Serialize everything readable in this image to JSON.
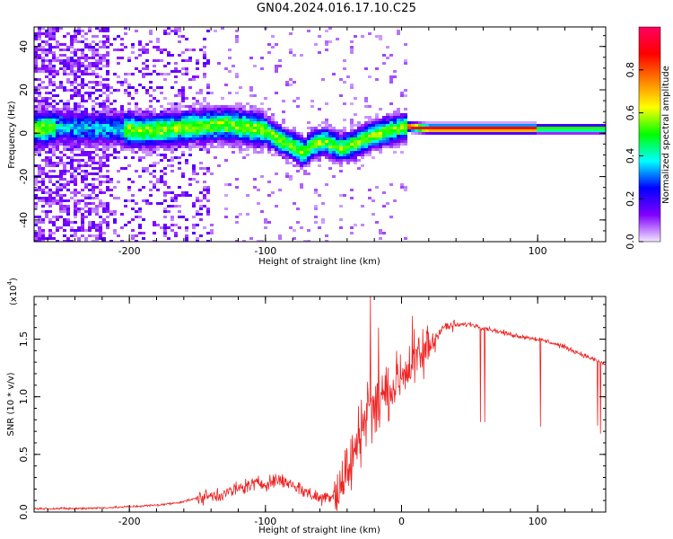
{
  "title": "GN04.2024.016.17.10.C25",
  "colors": {
    "snr_line": "#ee2222",
    "axes": "#000000"
  },
  "chart_data": [
    {
      "type": "heatmap",
      "xlabel": "Height of straight line (km)",
      "ylabel": "Frequency (Hz)",
      "xlim": [
        -270,
        150
      ],
      "ylim": [
        -50,
        49
      ],
      "xticks": [
        -200,
        -100,
        100
      ],
      "yticks": [
        -40,
        -20,
        0,
        20,
        40
      ],
      "colorbar": {
        "label": "Normalized spectral amplitude",
        "range": [
          0,
          1
        ],
        "ticks": [
          "0.0",
          "0.2",
          "0.4",
          "0.6",
          "0.8"
        ],
        "colormap": [
          "#f2e6ff",
          "#8000ff",
          "#0000ff",
          "#00ffff",
          "#00ff00",
          "#ffff00",
          "#ff8000",
          "#ff0000",
          "#ff0060"
        ]
      },
      "ridge_frequency": {
        "x": [
          -265,
          -250,
          -230,
          -210,
          -190,
          -170,
          -150,
          -130,
          -115,
          -100,
          -90,
          -80,
          -72,
          -65,
          -55,
          -45,
          -35,
          -25,
          -15,
          -5,
          5,
          20,
          50,
          100,
          150
        ],
        "y": [
          2,
          3,
          2,
          2,
          1,
          2,
          3,
          4,
          3,
          1,
          -3,
          -6,
          -9,
          -5,
          -4,
          -7,
          -5,
          -2,
          0,
          2,
          3,
          2,
          2,
          2,
          2
        ]
      }
    },
    {
      "type": "line",
      "xlabel": "Height of straight line (km)",
      "ylabel": "SNR (10 * v/v)",
      "y_multiplier_label": "(x10",
      "y_multiplier_exp": "4",
      "xlim": [
        -270,
        150
      ],
      "ylim": [
        0,
        1.87
      ],
      "xticks": [
        -200,
        -100,
        0,
        100
      ],
      "yticks": [
        "0.0",
        "0.5",
        "1.0",
        "1.5"
      ],
      "series": [
        {
          "x": [
            -270,
            -240,
            -210,
            -180,
            -165,
            -150,
            -140,
            -130,
            -120,
            -110,
            -100,
            -90,
            -80,
            -70,
            -60,
            -50,
            -45,
            -40,
            -35,
            -30,
            -27,
            -25,
            -22,
            -20,
            -15,
            -10,
            -5,
            0,
            5,
            10,
            15,
            20,
            25,
            30,
            40,
            50,
            60,
            70,
            80,
            90,
            100,
            110,
            120,
            130,
            140,
            150
          ],
          "y": [
            0.03,
            0.03,
            0.04,
            0.06,
            0.08,
            0.12,
            0.14,
            0.16,
            0.2,
            0.24,
            0.25,
            0.28,
            0.24,
            0.17,
            0.12,
            0.15,
            0.22,
            0.35,
            0.5,
            0.7,
            0.85,
            0.95,
            0.9,
            0.85,
            1.0,
            1.05,
            1.1,
            1.2,
            1.25,
            1.3,
            1.35,
            1.45,
            1.52,
            1.6,
            1.62,
            1.63,
            1.6,
            1.57,
            1.54,
            1.52,
            1.5,
            1.47,
            1.43,
            1.38,
            1.33,
            1.28
          ]
        }
      ],
      "spikes": [
        {
          "x": -23,
          "y": 1.87
        },
        {
          "x": -17,
          "y": 1.6
        },
        {
          "x": 8,
          "y": 1.7
        },
        {
          "x": 58,
          "y": 0.78
        },
        {
          "x": 61,
          "y": 0.78
        },
        {
          "x": 102,
          "y": 0.74
        },
        {
          "x": 144,
          "y": 0.75
        },
        {
          "x": 146,
          "y": 0.68
        }
      ]
    }
  ]
}
